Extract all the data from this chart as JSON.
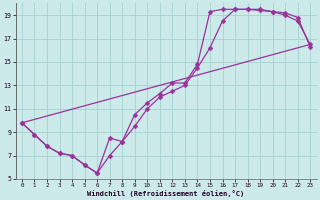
{
  "xlabel": "Windchill (Refroidissement éolien,°C)",
  "bg_color": "#cceaea",
  "grid_color": "#aad4d4",
  "line_color": "#993399",
  "xlim": [
    -0.5,
    23.5
  ],
  "ylim": [
    5,
    20
  ],
  "xticks": [
    0,
    1,
    2,
    3,
    4,
    5,
    6,
    7,
    8,
    9,
    10,
    11,
    12,
    13,
    14,
    15,
    16,
    17,
    18,
    19,
    20,
    21,
    22,
    23
  ],
  "yticks": [
    5,
    7,
    9,
    11,
    13,
    15,
    17,
    19
  ],
  "curve1": {
    "x": [
      0,
      1,
      2,
      3,
      4,
      5,
      6,
      7,
      8,
      9,
      10,
      11,
      12,
      13,
      14,
      15,
      16,
      17,
      18,
      19,
      20,
      21,
      22,
      23
    ],
    "y": [
      9.8,
      8.8,
      7.8,
      7.2,
      7.0,
      6.2,
      5.5,
      8.5,
      8.2,
      10.5,
      11.5,
      12.3,
      13.2,
      13.2,
      14.8,
      19.3,
      19.5,
      19.5,
      19.5,
      19.4,
      19.3,
      19.2,
      18.8,
      16.3
    ]
  },
  "curve2": {
    "x": [
      0,
      1,
      2,
      3,
      4,
      5,
      6,
      7,
      8,
      9,
      10,
      11,
      12,
      13,
      14,
      15,
      16,
      17,
      18,
      19,
      20,
      21,
      22,
      23
    ],
    "y": [
      9.8,
      8.8,
      7.8,
      7.2,
      7.0,
      6.2,
      5.5,
      7.0,
      8.2,
      9.5,
      11.0,
      12.0,
      12.5,
      13.0,
      14.5,
      16.2,
      18.5,
      19.5,
      19.5,
      19.5,
      19.3,
      19.0,
      18.5,
      16.5
    ]
  },
  "line": {
    "x": [
      0,
      23
    ],
    "y": [
      9.8,
      16.5
    ]
  },
  "markersize": 2.5,
  "linewidth": 0.9
}
